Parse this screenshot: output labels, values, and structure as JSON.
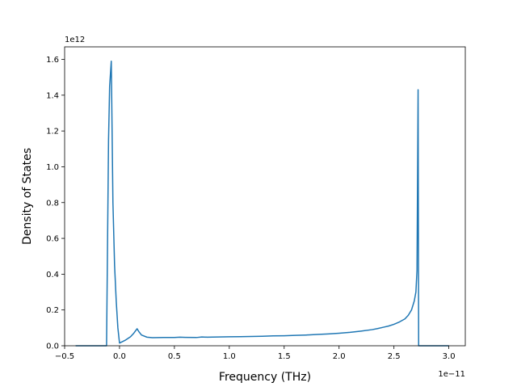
{
  "chart_data": {
    "type": "line",
    "title": "",
    "xlabel": "Frequency (THz)",
    "ylabel": "Density of States",
    "x_offset_label": "1e−11",
    "y_offset_label": "1e12",
    "xlim": [
      -0.5,
      3.15
    ],
    "ylim": [
      0,
      1.67
    ],
    "x_ticks": [
      -0.5,
      0.0,
      0.5,
      1.0,
      1.5,
      2.0,
      2.5,
      3.0
    ],
    "x_tick_labels": [
      "−0.5",
      "0.0",
      "0.5",
      "1.0",
      "1.5",
      "2.0",
      "2.5",
      "3.0"
    ],
    "y_ticks": [
      0.0,
      0.2,
      0.4,
      0.6,
      0.8,
      1.0,
      1.2,
      1.4,
      1.6
    ],
    "y_tick_labels": [
      "0.0",
      "0.2",
      "0.4",
      "0.6",
      "0.8",
      "1.0",
      "1.2",
      "1.4",
      "1.6"
    ],
    "grid": false,
    "series": [
      {
        "color": "#1f77b4",
        "x": [
          -0.4,
          -0.12,
          -0.118,
          -0.1,
          -0.09,
          -0.075,
          -0.06,
          -0.045,
          -0.03,
          -0.015,
          0.0,
          0.05,
          0.1,
          0.13,
          0.16,
          0.175,
          0.2,
          0.25,
          0.3,
          0.4,
          0.5,
          0.55,
          0.6,
          0.7,
          0.75,
          0.8,
          0.9,
          1.0,
          1.1,
          1.2,
          1.3,
          1.4,
          1.5,
          1.6,
          1.7,
          1.8,
          1.9,
          2.0,
          2.1,
          2.2,
          2.3,
          2.35,
          2.4,
          2.45,
          2.5,
          2.55,
          2.6,
          2.63,
          2.66,
          2.685,
          2.7,
          2.71,
          2.72,
          2.725,
          2.73,
          2.8,
          3.0
        ],
        "values": [
          0.0,
          0.0,
          0.0,
          1.15,
          1.45,
          1.59,
          0.8,
          0.45,
          0.25,
          0.1,
          0.015,
          0.03,
          0.05,
          0.07,
          0.095,
          0.08,
          0.06,
          0.048,
          0.045,
          0.046,
          0.046,
          0.048,
          0.047,
          0.046,
          0.049,
          0.048,
          0.049,
          0.05,
          0.051,
          0.052,
          0.053,
          0.055,
          0.056,
          0.058,
          0.06,
          0.063,
          0.066,
          0.07,
          0.075,
          0.082,
          0.09,
          0.096,
          0.103,
          0.11,
          0.12,
          0.133,
          0.15,
          0.17,
          0.2,
          0.25,
          0.3,
          0.42,
          1.43,
          0.0,
          0.0,
          0.0,
          0.0
        ]
      }
    ]
  }
}
